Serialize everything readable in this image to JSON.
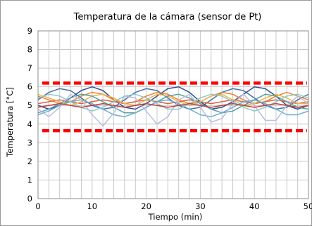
{
  "chart_data": {
    "type": "line",
    "title": "Temperatura de la cámara (sensor de Pt)",
    "xlabel": "Tiempo (min)",
    "ylabel": "Temperatura [°C]",
    "xlim": [
      0,
      50
    ],
    "ylim": [
      0,
      9
    ],
    "xticks": [
      "0",
      "10",
      "20",
      "30",
      "40",
      "50"
    ],
    "yticks": [
      "0",
      "1",
      "2",
      "3",
      "4",
      "5",
      "6",
      "7",
      "8",
      "9"
    ],
    "grid": true,
    "limits": [
      {
        "y": 6.2,
        "color": "#ff0000"
      },
      {
        "y": 3.65,
        "color": "#ff0000"
      }
    ],
    "series": [
      {
        "color": "#4a6fa5",
        "x": [
          0,
          2,
          4,
          6,
          8,
          10,
          12,
          14,
          16,
          18,
          20,
          22,
          24,
          26,
          28,
          30,
          32,
          34,
          36,
          38,
          40,
          42,
          44,
          46,
          48,
          50
        ],
        "values": [
          5.3,
          5.7,
          5.9,
          5.8,
          5.4,
          5.0,
          4.8,
          4.9,
          5.3,
          5.7,
          5.9,
          5.8,
          5.4,
          5.0,
          4.8,
          4.9,
          5.3,
          5.7,
          5.9,
          5.8,
          5.4,
          5.0,
          4.8,
          4.9,
          5.3,
          5.6
        ]
      },
      {
        "color": "#2f4f8f",
        "x": [
          0,
          2,
          4,
          6,
          8,
          10,
          12,
          14,
          16,
          18,
          20,
          22,
          24,
          26,
          28,
          30,
          32,
          34,
          36,
          38,
          40,
          42,
          44,
          46,
          48,
          50
        ],
        "values": [
          5.0,
          4.8,
          5.0,
          5.4,
          5.8,
          6.0,
          5.8,
          5.3,
          4.9,
          4.8,
          5.1,
          5.5,
          5.9,
          6.0,
          5.7,
          5.2,
          4.8,
          4.9,
          5.2,
          5.6,
          6.0,
          5.9,
          5.5,
          5.0,
          4.8,
          5.0
        ]
      },
      {
        "color": "#f08030",
        "x": [
          0,
          2,
          4,
          6,
          8,
          10,
          12,
          14,
          16,
          18,
          20,
          22,
          24,
          26,
          28,
          30,
          32,
          34,
          36,
          38,
          40,
          42,
          44,
          46,
          48,
          50
        ],
        "values": [
          5.5,
          5.3,
          5.1,
          5.2,
          5.5,
          5.7,
          5.6,
          5.3,
          5.1,
          5.2,
          5.5,
          5.7,
          5.6,
          5.3,
          5.1,
          5.2,
          5.5,
          5.7,
          5.6,
          5.3,
          5.1,
          5.2,
          5.5,
          5.7,
          5.5,
          5.3
        ]
      },
      {
        "color": "#e06040",
        "x": [
          0,
          2,
          4,
          6,
          8,
          10,
          12,
          14,
          16,
          18,
          20,
          22,
          24,
          26,
          28,
          30,
          32,
          34,
          36,
          38,
          40,
          42,
          44,
          46,
          48,
          50
        ],
        "values": [
          5.1,
          5.2,
          5.3,
          5.2,
          5.1,
          5.2,
          5.3,
          5.2,
          5.1,
          5.2,
          5.3,
          5.2,
          5.1,
          5.2,
          5.3,
          5.2,
          5.1,
          5.2,
          5.3,
          5.2,
          5.1,
          5.2,
          5.3,
          5.2,
          5.1,
          5.2
        ]
      },
      {
        "color": "#e8b84a",
        "x": [
          0,
          2,
          4,
          6,
          8,
          10,
          12,
          14,
          16,
          18,
          20,
          22,
          24,
          26,
          28,
          30,
          32,
          34,
          36,
          38,
          40,
          42,
          44,
          46,
          48,
          50
        ],
        "values": [
          5.6,
          5.4,
          5.2,
          5.0,
          5.2,
          5.5,
          5.6,
          5.4,
          5.1,
          5.0,
          5.3,
          5.6,
          5.5,
          5.2,
          5.0,
          5.2,
          5.5,
          5.6,
          5.3,
          5.0,
          5.1,
          5.4,
          5.6,
          5.4,
          5.1,
          5.1
        ]
      },
      {
        "color": "#5aa0a0",
        "x": [
          0,
          2,
          4,
          6,
          8,
          10,
          12,
          14,
          16,
          18,
          20,
          22,
          24,
          26,
          28,
          30,
          32,
          34,
          36,
          38,
          40,
          42,
          44,
          46,
          48,
          50
        ],
        "values": [
          4.6,
          4.8,
          5.1,
          5.4,
          5.6,
          5.5,
          5.2,
          4.9,
          4.6,
          4.6,
          4.9,
          5.2,
          5.5,
          5.6,
          5.4,
          5.1,
          4.8,
          4.6,
          4.7,
          5.0,
          5.3,
          5.6,
          5.5,
          5.2,
          4.9,
          4.8
        ]
      },
      {
        "color": "#6aaed6",
        "x": [
          0,
          2,
          4,
          6,
          8,
          10,
          12,
          14,
          16,
          18,
          20,
          22,
          24,
          26,
          28,
          30,
          32,
          34,
          36,
          38,
          40,
          42,
          44,
          46,
          48,
          50
        ],
        "values": [
          4.5,
          4.7,
          5.0,
          5.2,
          5.3,
          5.1,
          4.8,
          4.5,
          4.4,
          4.6,
          4.9,
          5.2,
          5.3,
          5.1,
          4.8,
          4.5,
          4.4,
          4.6,
          4.9,
          5.2,
          5.3,
          5.1,
          4.8,
          4.5,
          4.5,
          4.7
        ]
      },
      {
        "color": "#b8bede",
        "x": [
          0,
          2,
          4,
          6,
          8,
          10,
          12,
          14,
          16,
          18,
          20,
          22,
          24,
          26,
          28,
          30,
          32,
          34,
          36,
          38,
          40,
          42,
          44,
          46,
          48,
          50
        ],
        "values": [
          4.8,
          4.4,
          4.9,
          5.6,
          5.3,
          4.5,
          3.9,
          4.6,
          5.5,
          5.4,
          4.7,
          4.0,
          4.4,
          5.3,
          5.6,
          4.9,
          4.1,
          4.3,
          5.1,
          5.6,
          5.0,
          4.2,
          4.2,
          5.0,
          5.5,
          5.1
        ]
      },
      {
        "color": "#8ec8c8",
        "x": [
          0,
          2,
          4,
          6,
          8,
          10,
          12,
          14,
          16,
          18,
          20,
          22,
          24,
          26,
          28,
          30,
          32,
          34,
          36,
          38,
          40,
          42,
          44,
          46,
          48,
          50
        ],
        "values": [
          5.4,
          5.6,
          5.5,
          5.2,
          4.9,
          4.7,
          4.9,
          5.2,
          5.5,
          5.6,
          5.4,
          5.1,
          4.8,
          4.8,
          5.1,
          5.4,
          5.6,
          5.5,
          5.2,
          4.9,
          4.7,
          4.9,
          5.2,
          5.5,
          5.6,
          5.4
        ]
      },
      {
        "color": "#c04040",
        "x": [
          0,
          2,
          4,
          6,
          8,
          10,
          12,
          14,
          16,
          18,
          20,
          22,
          24,
          26,
          28,
          30,
          32,
          34,
          36,
          38,
          40,
          42,
          44,
          46,
          48,
          50
        ],
        "values": [
          4.9,
          5.0,
          5.1,
          5.0,
          4.9,
          5.0,
          5.1,
          5.0,
          4.9,
          5.0,
          5.1,
          5.0,
          4.9,
          5.0,
          5.1,
          5.0,
          4.9,
          5.0,
          5.1,
          5.0,
          4.9,
          5.0,
          5.1,
          5.0,
          4.9,
          5.0
        ]
      }
    ]
  }
}
